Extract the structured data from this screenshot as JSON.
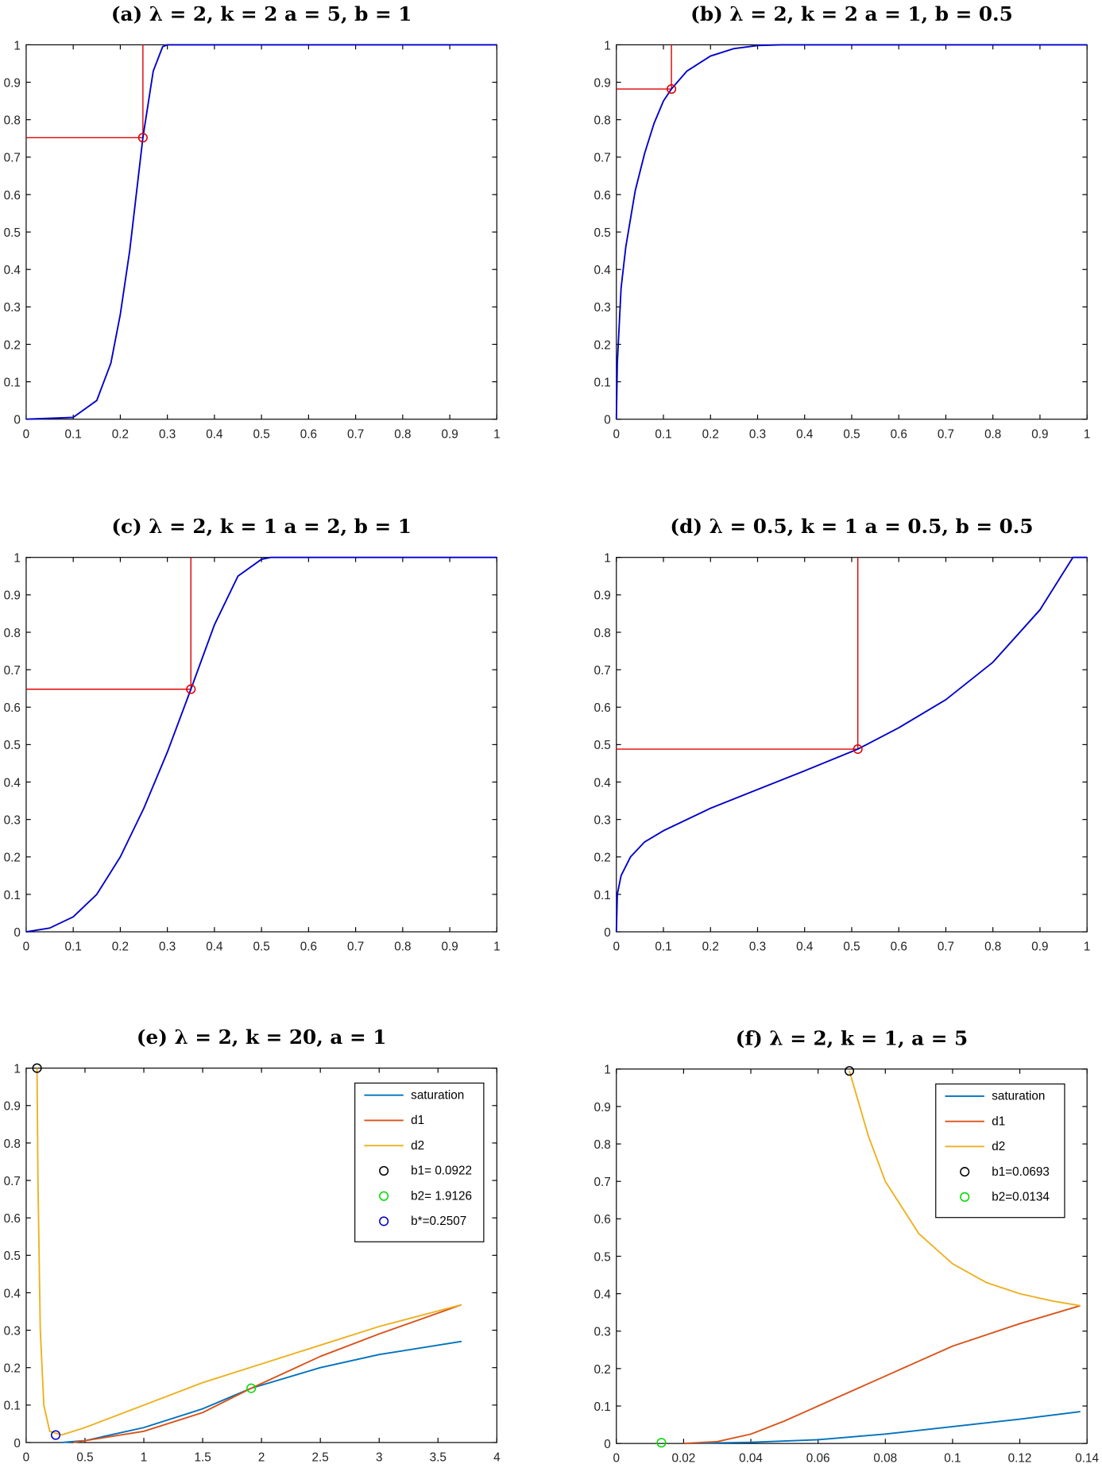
{
  "chart_data": [
    {
      "type": "line",
      "title": "(a) λ = 2, k = 2 a = 5, b = 1",
      "xlim": [
        0,
        1
      ],
      "ylim": [
        0,
        1
      ],
      "xticks": [
        "0",
        "0.1",
        "0.2",
        "0.3",
        "0.4",
        "0.5",
        "0.6",
        "0.7",
        "0.8",
        "0.9",
        "1"
      ],
      "yticks": [
        "0",
        "0.1",
        "0.2",
        "0.3",
        "0.4",
        "0.5",
        "0.6",
        "0.7",
        "0.8",
        "0.9",
        "1"
      ],
      "series": [
        {
          "name": "curve",
          "color": "#0000cc",
          "points": [
            [
              0,
              0
            ],
            [
              0.1,
              0.005
            ],
            [
              0.15,
              0.05
            ],
            [
              0.18,
              0.15
            ],
            [
              0.2,
              0.28
            ],
            [
              0.22,
              0.45
            ],
            [
              0.248,
              0.752
            ],
            [
              0.27,
              0.93
            ],
            [
              0.29,
              0.995
            ],
            [
              0.3,
              1
            ],
            [
              1,
              1
            ]
          ]
        }
      ],
      "marker": {
        "x": 0.248,
        "y": 0.752,
        "color": "#dd0000"
      }
    },
    {
      "type": "line",
      "title": "(b) λ = 2, k = 2 a = 1, b = 0.5",
      "xlim": [
        0,
        1
      ],
      "ylim": [
        0,
        1
      ],
      "xticks": [
        "0",
        "0.1",
        "0.2",
        "0.3",
        "0.4",
        "0.5",
        "0.6",
        "0.7",
        "0.8",
        "0.9",
        "1"
      ],
      "yticks": [
        "0",
        "0.1",
        "0.2",
        "0.3",
        "0.4",
        "0.5",
        "0.6",
        "0.7",
        "0.8",
        "0.9",
        "1"
      ],
      "series": [
        {
          "name": "curve",
          "color": "#0000cc",
          "points": [
            [
              0,
              0
            ],
            [
              0.002,
              0.15
            ],
            [
              0.01,
              0.35
            ],
            [
              0.02,
              0.46
            ],
            [
              0.04,
              0.61
            ],
            [
              0.06,
              0.71
            ],
            [
              0.08,
              0.79
            ],
            [
              0.1,
              0.85
            ],
            [
              0.117,
              0.882
            ],
            [
              0.15,
              0.93
            ],
            [
              0.2,
              0.97
            ],
            [
              0.25,
              0.99
            ],
            [
              0.3,
              0.998
            ],
            [
              0.35,
              1
            ],
            [
              1,
              1
            ]
          ]
        }
      ],
      "marker": {
        "x": 0.117,
        "y": 0.882,
        "color": "#dd0000"
      }
    },
    {
      "type": "line",
      "title": "(c) λ = 2, k = 1 a = 2, b = 1",
      "xlim": [
        0,
        1
      ],
      "ylim": [
        0,
        1
      ],
      "xticks": [
        "0",
        "0.1",
        "0.2",
        "0.3",
        "0.4",
        "0.5",
        "0.6",
        "0.7",
        "0.8",
        "0.9",
        "1"
      ],
      "yticks": [
        "0",
        "0.1",
        "0.2",
        "0.3",
        "0.4",
        "0.5",
        "0.6",
        "0.7",
        "0.8",
        "0.9",
        "1"
      ],
      "series": [
        {
          "name": "curve",
          "color": "#0000cc",
          "points": [
            [
              0,
              0
            ],
            [
              0.05,
              0.01
            ],
            [
              0.1,
              0.04
            ],
            [
              0.15,
              0.1
            ],
            [
              0.2,
              0.2
            ],
            [
              0.25,
              0.33
            ],
            [
              0.3,
              0.48
            ],
            [
              0.35,
              0.648
            ],
            [
              0.4,
              0.82
            ],
            [
              0.45,
              0.95
            ],
            [
              0.5,
              0.995
            ],
            [
              0.52,
              1
            ],
            [
              1,
              1
            ]
          ]
        }
      ],
      "marker": {
        "x": 0.35,
        "y": 0.648,
        "color": "#dd0000"
      }
    },
    {
      "type": "line",
      "title": "(d) λ = 0.5, k = 1 a = 0.5, b = 0.5",
      "xlim": [
        0,
        1
      ],
      "ylim": [
        0,
        1
      ],
      "xticks": [
        "0",
        "0.1",
        "0.2",
        "0.3",
        "0.4",
        "0.5",
        "0.6",
        "0.7",
        "0.8",
        "0.9",
        "1"
      ],
      "yticks": [
        "0",
        "0.1",
        "0.2",
        "0.3",
        "0.4",
        "0.5",
        "0.6",
        "0.7",
        "0.8",
        "0.9",
        "1"
      ],
      "series": [
        {
          "name": "curve",
          "color": "#0000cc",
          "points": [
            [
              0,
              0
            ],
            [
              0.002,
              0.1
            ],
            [
              0.01,
              0.15
            ],
            [
              0.03,
              0.2
            ],
            [
              0.06,
              0.24
            ],
            [
              0.1,
              0.27
            ],
            [
              0.2,
              0.33
            ],
            [
              0.3,
              0.38
            ],
            [
              0.4,
              0.43
            ],
            [
              0.513,
              0.488
            ],
            [
              0.6,
              0.545
            ],
            [
              0.7,
              0.62
            ],
            [
              0.8,
              0.72
            ],
            [
              0.9,
              0.86
            ],
            [
              0.95,
              0.96
            ],
            [
              0.97,
              1
            ],
            [
              1,
              1
            ]
          ]
        }
      ],
      "marker": {
        "x": 0.513,
        "y": 0.488,
        "color": "#dd0000"
      }
    },
    {
      "type": "line",
      "title": "(e) λ = 2, k = 20, a = 1",
      "xlim": [
        0,
        4
      ],
      "ylim": [
        0,
        1
      ],
      "xticks": [
        "0",
        "0.5",
        "1",
        "1.5",
        "2",
        "2.5",
        "3",
        "3.5",
        "4"
      ],
      "yticks": [
        "0",
        "0.1",
        "0.2",
        "0.3",
        "0.4",
        "0.5",
        "0.6",
        "0.7",
        "0.8",
        "0.9",
        "1"
      ],
      "series": [
        {
          "name": "saturation",
          "color": "#0072BD",
          "points": [
            [
              0.3,
              0
            ],
            [
              0.5,
              0.005
            ],
            [
              1,
              0.04
            ],
            [
              1.5,
              0.09
            ],
            [
              1.9126,
              0.145
            ],
            [
              2.5,
              0.2
            ],
            [
              3,
              0.235
            ],
            [
              3.7,
              0.27
            ]
          ]
        },
        {
          "name": "d1",
          "color": "#D95319",
          "points": [
            [
              0.4,
              0
            ],
            [
              1,
              0.03
            ],
            [
              1.5,
              0.08
            ],
            [
              1.9126,
              0.145
            ],
            [
              2.5,
              0.23
            ],
            [
              3,
              0.29
            ],
            [
              3.7,
              0.368
            ]
          ]
        },
        {
          "name": "d2",
          "color": "#EDB120",
          "points": [
            [
              0.0922,
              1
            ],
            [
              0.1,
              0.7
            ],
            [
              0.12,
              0.3
            ],
            [
              0.15,
              0.1
            ],
            [
              0.2,
              0.03
            ],
            [
              0.3,
              0.02
            ],
            [
              0.5,
              0.04
            ],
            [
              1,
              0.1
            ],
            [
              1.5,
              0.16
            ],
            [
              2,
              0.21
            ],
            [
              2.5,
              0.26
            ],
            [
              3,
              0.31
            ],
            [
              3.7,
              0.368
            ]
          ]
        }
      ],
      "points": [
        {
          "name": "b1 = 0.0922",
          "x": 0.0922,
          "y": 1,
          "color": "#000000"
        },
        {
          "name": "b2 = 1.9126",
          "x": 1.9126,
          "y": 0.145,
          "color": "#00dd00"
        },
        {
          "name": "b* = 0.2507",
          "x": 0.2507,
          "y": 0.02,
          "color": "#0000cc"
        }
      ],
      "legend": {
        "placement": "top-right",
        "entries": [
          "saturation",
          "d1",
          "d2",
          "b1= 0.0922",
          "b2= 1.9126",
          "b*=0.2507"
        ]
      }
    },
    {
      "type": "line",
      "title": "(f) λ = 2, k = 1, a = 5",
      "xlim": [
        0,
        0.14
      ],
      "ylim": [
        0,
        1
      ],
      "xticks": [
        "0",
        "0.02",
        "0.04",
        "0.06",
        "0.08",
        "0.1",
        "0.12",
        "0.14"
      ],
      "yticks": [
        "0",
        "0.1",
        "0.2",
        "0.3",
        "0.4",
        "0.5",
        "0.6",
        "0.7",
        "0.8",
        "0.9",
        "1"
      ],
      "series": [
        {
          "name": "saturation",
          "color": "#0072BD",
          "points": [
            [
              0.02,
              0
            ],
            [
              0.04,
              0.003
            ],
            [
              0.06,
              0.01
            ],
            [
              0.08,
              0.025
            ],
            [
              0.1,
              0.045
            ],
            [
              0.12,
              0.065
            ],
            [
              0.138,
              0.085
            ]
          ]
        },
        {
          "name": "d1",
          "color": "#D95319",
          "points": [
            [
              0.02,
              0
            ],
            [
              0.03,
              0.005
            ],
            [
              0.04,
              0.025
            ],
            [
              0.05,
              0.06
            ],
            [
              0.06,
              0.1
            ],
            [
              0.07,
              0.14
            ],
            [
              0.08,
              0.18
            ],
            [
              0.1,
              0.26
            ],
            [
              0.12,
              0.32
            ],
            [
              0.138,
              0.368
            ]
          ]
        },
        {
          "name": "d2",
          "color": "#EDB120",
          "points": [
            [
              0.0693,
              0.995
            ],
            [
              0.075,
              0.82
            ],
            [
              0.08,
              0.7
            ],
            [
              0.09,
              0.56
            ],
            [
              0.1,
              0.48
            ],
            [
              0.11,
              0.43
            ],
            [
              0.12,
              0.4
            ],
            [
              0.13,
              0.38
            ],
            [
              0.138,
              0.368
            ]
          ]
        }
      ],
      "points": [
        {
          "name": "b1=0.0693",
          "x": 0.0693,
          "y": 0.995,
          "color": "#000000"
        },
        {
          "name": "b2=0.0134",
          "x": 0.0134,
          "y": 0.002,
          "color": "#00dd00"
        }
      ],
      "legend": {
        "placement": "top-right",
        "entries": [
          "saturation",
          "d1",
          "d2",
          "b1=0.0693",
          "b2=0.0134"
        ]
      }
    }
  ]
}
